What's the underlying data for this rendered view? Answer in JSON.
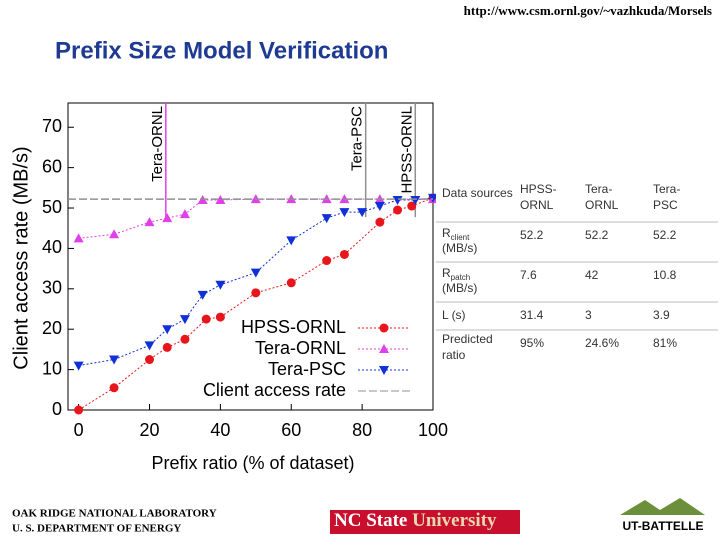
{
  "url": "http://www.csm.ornl.gov/~vazhkuda/Morsels",
  "title": "Prefix Size Model Verification",
  "chart_data": {
    "type": "line",
    "xlabel": "Prefix ratio (% of dataset)",
    "ylabel": "Client access rate (MB/s)",
    "xlim": [
      -3,
      100
    ],
    "ylim": [
      0,
      76
    ],
    "xticks": [
      0,
      20,
      40,
      60,
      80,
      100
    ],
    "yticks": [
      0,
      10,
      20,
      30,
      40,
      50,
      60,
      70
    ],
    "series": [
      {
        "name": "HPSS-ORNL",
        "color": "#e8161c",
        "marker": "circle",
        "x": [
          0,
          10,
          20,
          25,
          30,
          36,
          40,
          50,
          60,
          70,
          75,
          85,
          90,
          94,
          100
        ],
        "values": [
          0,
          5.5,
          12.5,
          15.5,
          17.5,
          22.5,
          23,
          29,
          31.5,
          37,
          38.5,
          46.5,
          49.5,
          50.5,
          52.5
        ]
      },
      {
        "name": "Tera-ORNL",
        "color": "#e040e8",
        "marker": "triangle-up",
        "x": [
          0,
          10,
          20,
          25,
          30,
          35,
          40,
          50,
          60,
          70,
          75,
          85,
          100
        ],
        "values": [
          42.5,
          43.5,
          46.5,
          47.5,
          48.5,
          52,
          52,
          52.2,
          52.2,
          52.2,
          52.2,
          52.2,
          52.2
        ]
      },
      {
        "name": "Tera-PSC",
        "color": "#1030d8",
        "marker": "triangle-down",
        "x": [
          0,
          10,
          20,
          25,
          30,
          35,
          40,
          50,
          60,
          70,
          75,
          80,
          85,
          90,
          95,
          100
        ],
        "values": [
          11,
          12.5,
          16,
          20,
          22.5,
          28.5,
          31,
          34,
          42,
          47.5,
          49,
          49,
          50.5,
          52,
          52,
          52.5
        ]
      },
      {
        "name": "Client access rate",
        "color": "#909090",
        "marker": "none",
        "x": [
          -3,
          100
        ],
        "values": [
          52.2,
          52.2
        ]
      }
    ],
    "annotations": [
      {
        "text": "Tera-ORNL",
        "x": 24.6,
        "color": "#e040e8"
      },
      {
        "text": "Tera-PSC",
        "x": 81,
        "color": "#909090"
      },
      {
        "text": "HPSS-ORNL",
        "x": 95,
        "color": "#909090"
      }
    ]
  },
  "table": {
    "header": [
      "Data sources",
      "HPSS-ORNL",
      "Tera-ORNL",
      "Tera-PSC"
    ],
    "rows": [
      [
        {
          "base": "R",
          "sub": "client",
          "rest": "(MB/s)"
        },
        "52.2",
        "52.2",
        "52.2"
      ],
      [
        {
          "base": "R",
          "sub": "patch",
          "rest": "(MB/s)"
        },
        "7.6",
        "42",
        "10.8"
      ],
      [
        "L (s)",
        "31.4",
        "3",
        "3.9"
      ],
      [
        "Predicted ratio",
        "95%",
        "24.6%",
        "81%"
      ]
    ]
  },
  "footer": {
    "lab": "OAK RIDGE NATIONAL LABORATORY",
    "dept": "U. S. DEPARTMENT OF ENERGY",
    "ncsu": [
      "NC State",
      "University"
    ],
    "ut": "UT-BATTELLE"
  }
}
